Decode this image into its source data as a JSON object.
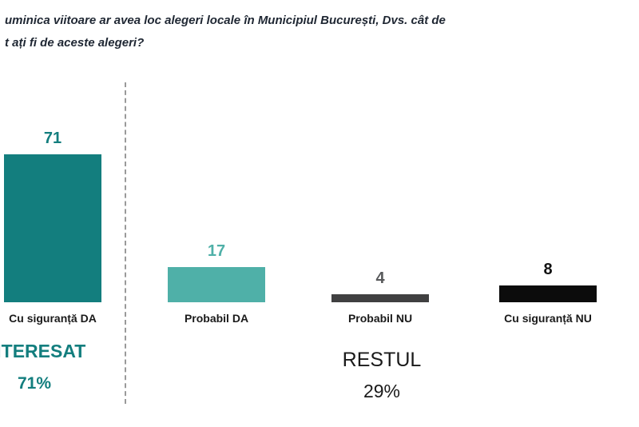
{
  "title": {
    "line1": "uminica viitoare ar avea loc alegeri locale în Municipiul București, Dvs. cât de",
    "line2": "t ați fi de aceste alegeri?"
  },
  "chart_data": {
    "type": "bar",
    "categories": [
      "Cu siguranță DA",
      "Probabil DA",
      "Probabil NU",
      "Cu siguranță NU"
    ],
    "values": [
      71,
      17,
      4,
      8
    ],
    "value_labels": [
      "71",
      "17",
      "4",
      "8"
    ],
    "bar_colors": [
      "#137e7e",
      "#4fb0a8",
      "#404041",
      "#0c0c0c"
    ],
    "value_colors": [
      "#137e7e",
      "#4fb0a8",
      "#58595b",
      "#111111"
    ],
    "ylim": [
      0,
      80
    ],
    "legend": "none",
    "grid": false,
    "groups": [
      {
        "label": "INTERESAT",
        "value": "71%",
        "color": "#137e7e"
      },
      {
        "label": "RESTUL",
        "value": "29%",
        "color": "#1a1a1a"
      }
    ]
  }
}
